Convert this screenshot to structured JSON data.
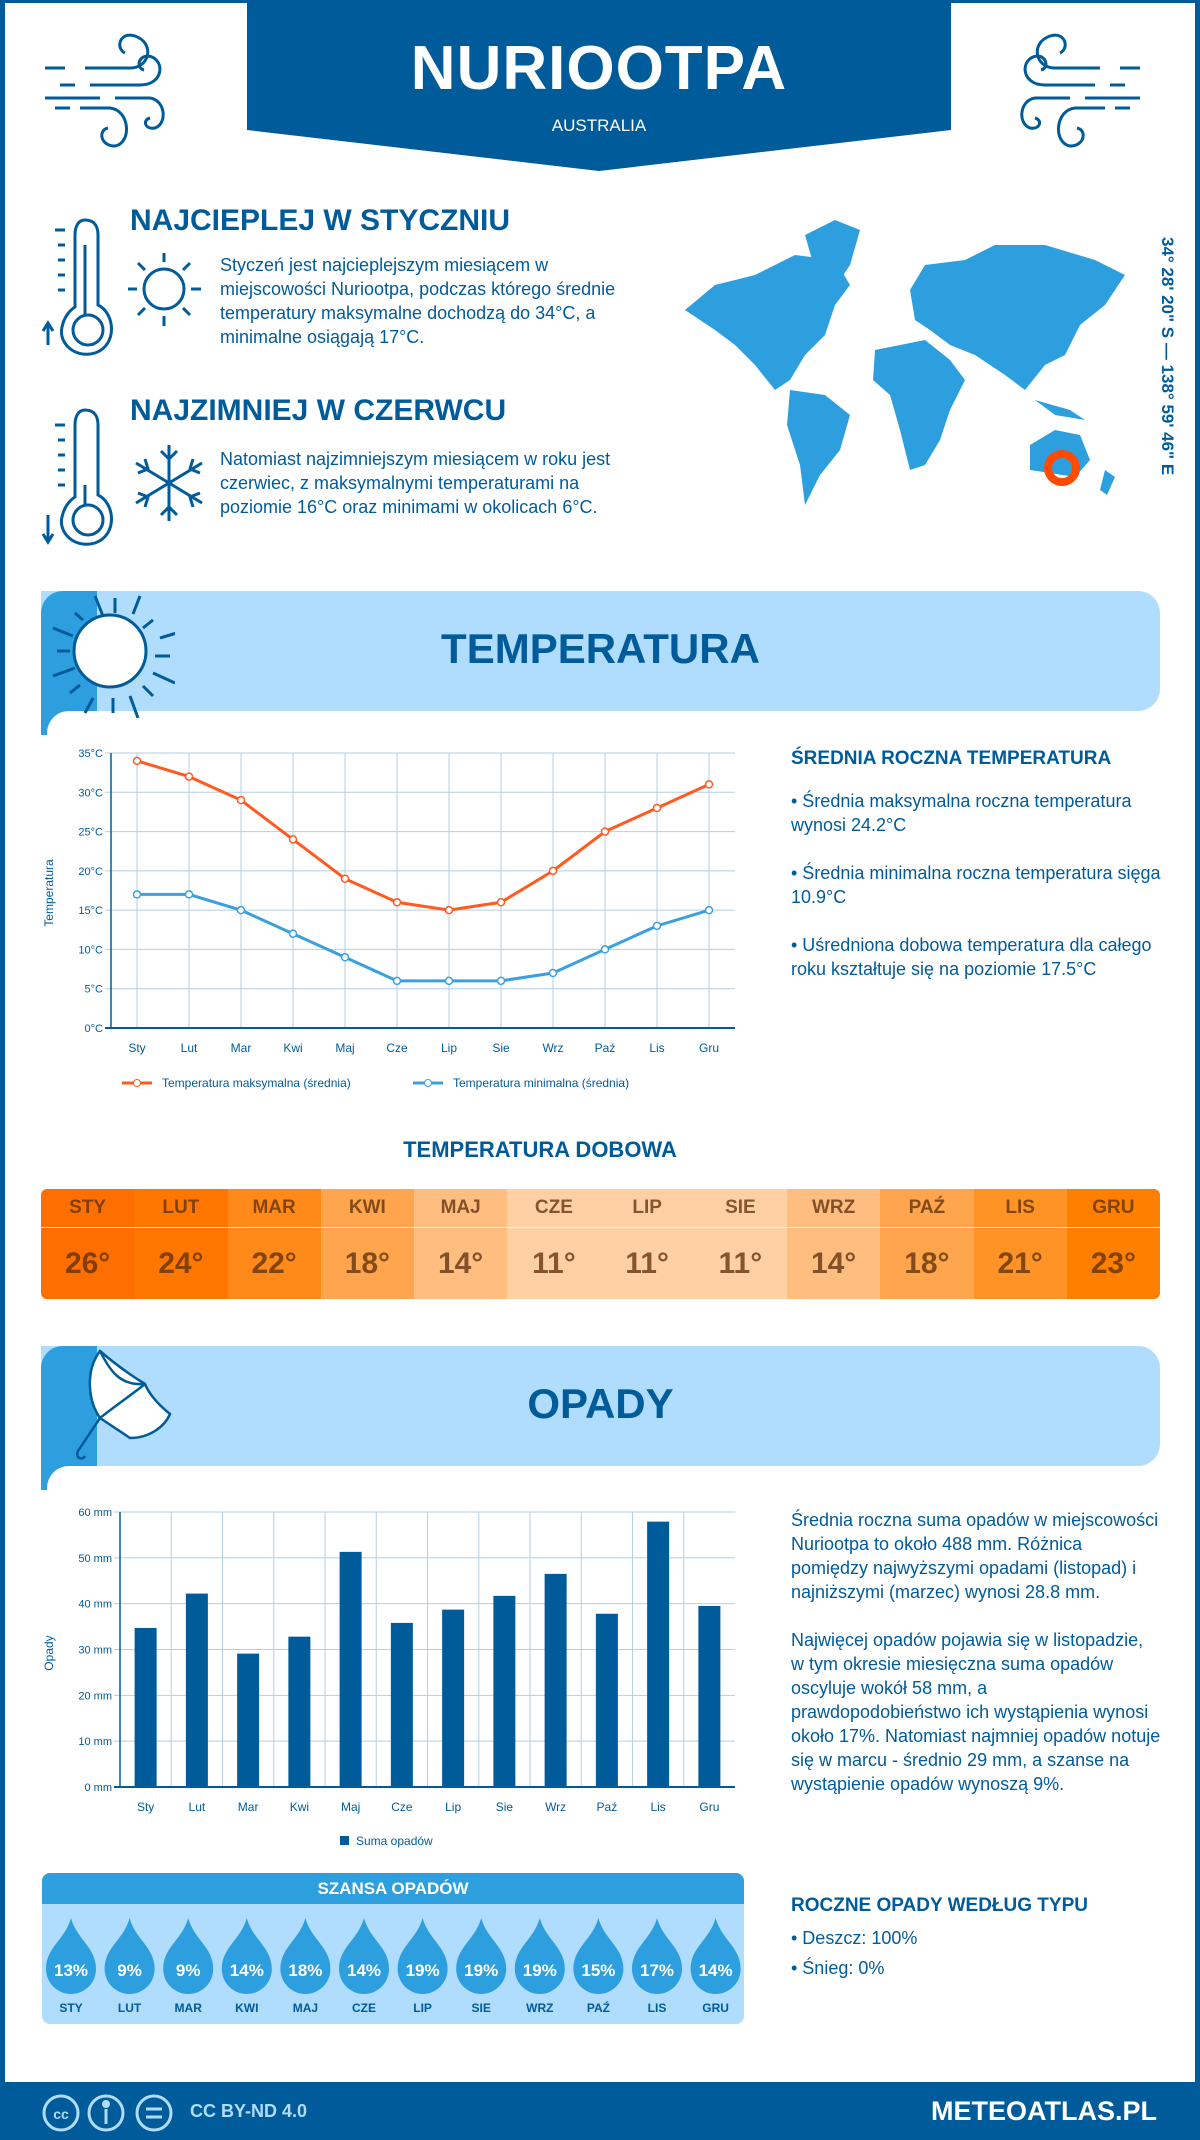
{
  "header": {
    "title": "NURIOOTPA",
    "country": "AUSTRALIA"
  },
  "warmest": {
    "title": "NAJCIEPLEJ W STYCZNIU",
    "text": "Styczeń jest najcieplejszym miesiącem w miejscowości Nuriootpa, podczas którego średnie temperatury maksymalne dochodzą do 34°C, a minimalne osiągają 17°C."
  },
  "coldest": {
    "title": "NAJZIMNIEJ W CZERWCU",
    "text": "Natomiast najzimniejszym miesiącem w roku jest czerwiec, z maksymalnymi temperaturami na poziomie 16°C oraz minimami w okolicach 6°C."
  },
  "coordinates": "34° 28' 20\" S — 138° 59' 46\" E",
  "temperature": {
    "title": "TEMPERATURA",
    "summary_title": "ŚREDNIA ROCZNA TEMPERATURA",
    "bullets": [
      "• Średnia maksymalna roczna temperatura wynosi 24.2°C",
      "• Średnia minimalna roczna temperatura sięga 10.9°C",
      "• Uśredniona dobowa temperatura dla całego roku kształtuje się na poziomie 17.5°C"
    ]
  },
  "chart_data": [
    {
      "type": "line",
      "ylabel": "Temperatura",
      "ylim": [
        0,
        35
      ],
      "yticks": [
        "0°C",
        "5°C",
        "10°C",
        "15°C",
        "20°C",
        "25°C",
        "30°C",
        "35°C"
      ],
      "grid": true,
      "legend": "bottom",
      "categories": [
        "Sty",
        "Lut",
        "Mar",
        "Kwi",
        "Maj",
        "Cze",
        "Lip",
        "Sie",
        "Wrz",
        "Paź",
        "Lis",
        "Gru"
      ],
      "series": [
        {
          "name": "Temperatura maksymalna (średnia)",
          "color": "#ff5a1f",
          "values": [
            34,
            32,
            29,
            24,
            19,
            16,
            15,
            16,
            20,
            25,
            28,
            31
          ]
        },
        {
          "name": "Temperatura minimalna (średnia)",
          "color": "#3aa0e0",
          "values": [
            17,
            17,
            15,
            12,
            9,
            6,
            6,
            6,
            7,
            10,
            13,
            15
          ]
        }
      ]
    },
    {
      "type": "bar",
      "ylabel": "Opady",
      "ylim": [
        0,
        60
      ],
      "yticks": [
        "0 mm",
        "10 mm",
        "20 mm",
        "30 mm",
        "40 mm",
        "50 mm",
        "60 mm"
      ],
      "grid": true,
      "legend": "bottom",
      "categories": [
        "Sty",
        "Lut",
        "Mar",
        "Kwi",
        "Maj",
        "Cze",
        "Lip",
        "Sie",
        "Wrz",
        "Paź",
        "Lis",
        "Gru"
      ],
      "series": [
        {
          "name": "Suma opadów",
          "color": "#005b9a",
          "values": [
            34.7,
            42.2,
            29.1,
            32.8,
            51.3,
            35.8,
            38.7,
            41.7,
            46.5,
            37.8,
            57.9,
            39.5
          ]
        }
      ]
    }
  ],
  "daily": {
    "title": "TEMPERATURA DOBOWA",
    "months": [
      "STY",
      "LUT",
      "MAR",
      "KWI",
      "MAJ",
      "CZE",
      "LIP",
      "SIE",
      "WRZ",
      "PAŹ",
      "LIS",
      "GRU"
    ],
    "values": [
      "26°",
      "24°",
      "22°",
      "18°",
      "14°",
      "11°",
      "11°",
      "11°",
      "14°",
      "18°",
      "21°",
      "23°"
    ],
    "colors": [
      "#ff6f00",
      "#ff7700",
      "#ff8a1a",
      "#ffa54d",
      "#ffbd80",
      "#ffd0a3",
      "#ffd0a3",
      "#ffd0a3",
      "#ffbd80",
      "#ffa54d",
      "#ff9326",
      "#ff8000"
    ]
  },
  "precipitation": {
    "title": "OPADY",
    "paragraphs": [
      "Średnia roczna suma opadów w miejscowości Nuriootpa to około 488 mm. Różnica pomiędzy najwyższymi opadami (listopad) i najniższymi (marzec) wynosi 28.8 mm.",
      "Najwięcej opadów pojawia się w listopadzie, w tym okresie miesięczna suma opadów oscyluje wokół 58 mm, a prawdopodobieństwo ich wystąpienia wynosi około 17%. Natomiast najmniej opadów notuje się w marcu - średnio 29 mm, a szanse na wystąpienie opadów wynoszą 9%."
    ]
  },
  "chance": {
    "title": "SZANSA OPADÓW",
    "months": [
      "STY",
      "LUT",
      "MAR",
      "KWI",
      "MAJ",
      "CZE",
      "LIP",
      "SIE",
      "WRZ",
      "PAŹ",
      "LIS",
      "GRU"
    ],
    "values": [
      "13%",
      "9%",
      "9%",
      "14%",
      "18%",
      "14%",
      "19%",
      "19%",
      "19%",
      "15%",
      "17%",
      "14%"
    ]
  },
  "precip_type": {
    "title": "ROCZNE OPADY WEDŁUG TYPU",
    "items": [
      "• Deszcz: 100%",
      "• Śnieg: 0%"
    ]
  },
  "footer": {
    "license": "CC BY-ND 4.0",
    "site": "METEOATLAS.PL"
  },
  "colors": {
    "brand": "#005b9a",
    "banner": "#b0dcfd",
    "accent": "#2e9fde",
    "marker": "#ff4a00"
  }
}
